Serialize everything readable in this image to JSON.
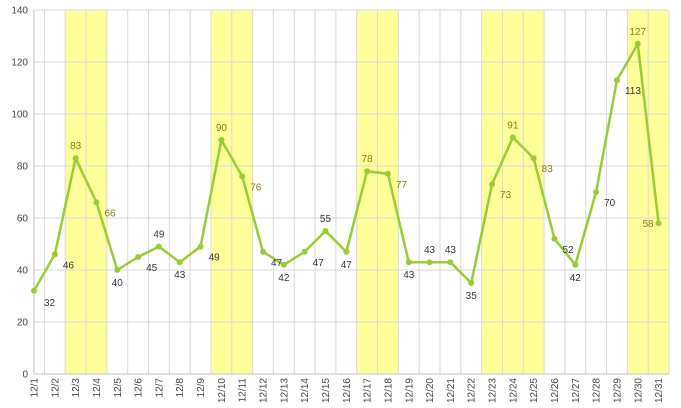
{
  "chart_data": {
    "type": "line",
    "title": "",
    "xlabel": "",
    "ylabel": "",
    "ylim": [
      0,
      140
    ],
    "y_ticks": [
      0,
      20,
      40,
      60,
      80,
      100,
      120,
      140
    ],
    "categories": [
      "12/1",
      "12/2",
      "12/3",
      "12/4",
      "12/5",
      "12/6",
      "12/7",
      "12/8",
      "12/9",
      "12/10",
      "12/11",
      "12/12",
      "12/13",
      "12/14",
      "12/15",
      "12/16",
      "12/17",
      "12/18",
      "12/19",
      "12/20",
      "12/21",
      "12/22",
      "12/23",
      "12/24",
      "12/25",
      "12/26",
      "12/27",
      "12/28",
      "12/29",
      "12/30",
      "12/31"
    ],
    "series": [
      {
        "values": [
          32,
          46,
          83,
          66,
          40,
          45,
          49,
          43,
          49,
          90,
          76,
          47,
          42,
          47,
          55,
          47,
          78,
          77,
          43,
          43,
          43,
          35,
          73,
          91,
          83,
          52,
          42,
          70,
          113,
          127,
          58
        ]
      }
    ],
    "highlight_ranges": [
      {
        "from": "12/3",
        "to": "12/4"
      },
      {
        "from": "12/10",
        "to": "12/11"
      },
      {
        "from": "12/17",
        "to": "12/18"
      },
      {
        "from": "12/23",
        "to": "12/25"
      },
      {
        "from": "12/30",
        "to": "12/31"
      }
    ],
    "grid": true,
    "legend": "none",
    "colors": {
      "line": "#99cc33",
      "highlight": "#ffff99",
      "grid": "#d9d9d9",
      "axis": "#bfbfbf",
      "label_on_highlight": "#8a7a10",
      "label_default": "#333333"
    }
  }
}
